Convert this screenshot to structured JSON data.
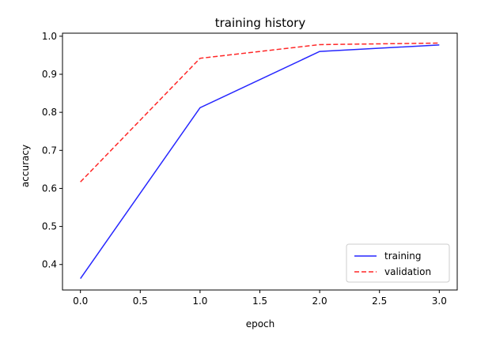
{
  "chart_data": {
    "type": "line",
    "title": "training history",
    "xlabel": "epoch",
    "ylabel": "accuracy",
    "xlim": [
      -0.15,
      3.15
    ],
    "ylim": [
      0.333,
      1.008
    ],
    "xticks": [
      0.0,
      0.5,
      1.0,
      1.5,
      2.0,
      2.5,
      3.0
    ],
    "xtick_labels": [
      "0.0",
      "0.5",
      "1.0",
      "1.5",
      "2.0",
      "2.5",
      "3.0"
    ],
    "yticks": [
      0.4,
      0.5,
      0.6,
      0.7,
      0.8,
      0.9,
      1.0
    ],
    "ytick_labels": [
      "0.4",
      "0.5",
      "0.6",
      "0.7",
      "0.8",
      "0.9",
      "1.0"
    ],
    "grid": false,
    "legend_position": "lower-right",
    "series": [
      {
        "name": "training",
        "color": "#0000ff",
        "style": "solid",
        "x": [
          0,
          1,
          2,
          3
        ],
        "values": [
          0.363,
          0.812,
          0.96,
          0.977
        ]
      },
      {
        "name": "validation",
        "color": "#ff0000",
        "style": "dashed",
        "x": [
          0,
          1,
          2,
          3
        ],
        "values": [
          0.617,
          0.942,
          0.978,
          0.982
        ]
      }
    ]
  }
}
